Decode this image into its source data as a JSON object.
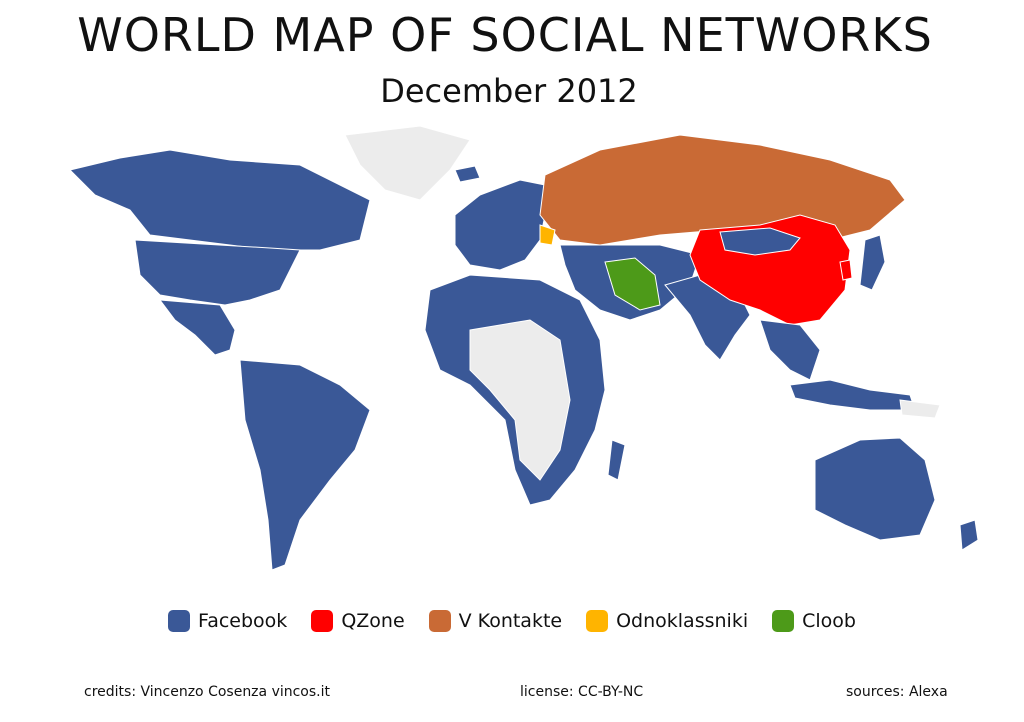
{
  "title": "WORLD MAP OF SOCIAL NETWORKS",
  "subtitle": "December 2012",
  "colors": {
    "facebook": "#3a5897",
    "qzone": "#ff0000",
    "vkontakte": "#c96a35",
    "odnoklassniki": "#ffb400",
    "cloob": "#4d9a19",
    "unassigned": "#ececec"
  },
  "legend": [
    {
      "label": "Facebook",
      "color": "#3a5897"
    },
    {
      "label": "QZone",
      "color": "#ff0000"
    },
    {
      "label": "V Kontakte",
      "color": "#c96a35"
    },
    {
      "label": "Odnoklassniki",
      "color": "#ffb400"
    },
    {
      "label": "Cloob",
      "color": "#4d9a19"
    }
  ],
  "footer": {
    "credits": "credits: Vincenzo Cosenza vincos.it",
    "license": "license: CC-BY-NC",
    "sources": "sources: Alexa"
  }
}
